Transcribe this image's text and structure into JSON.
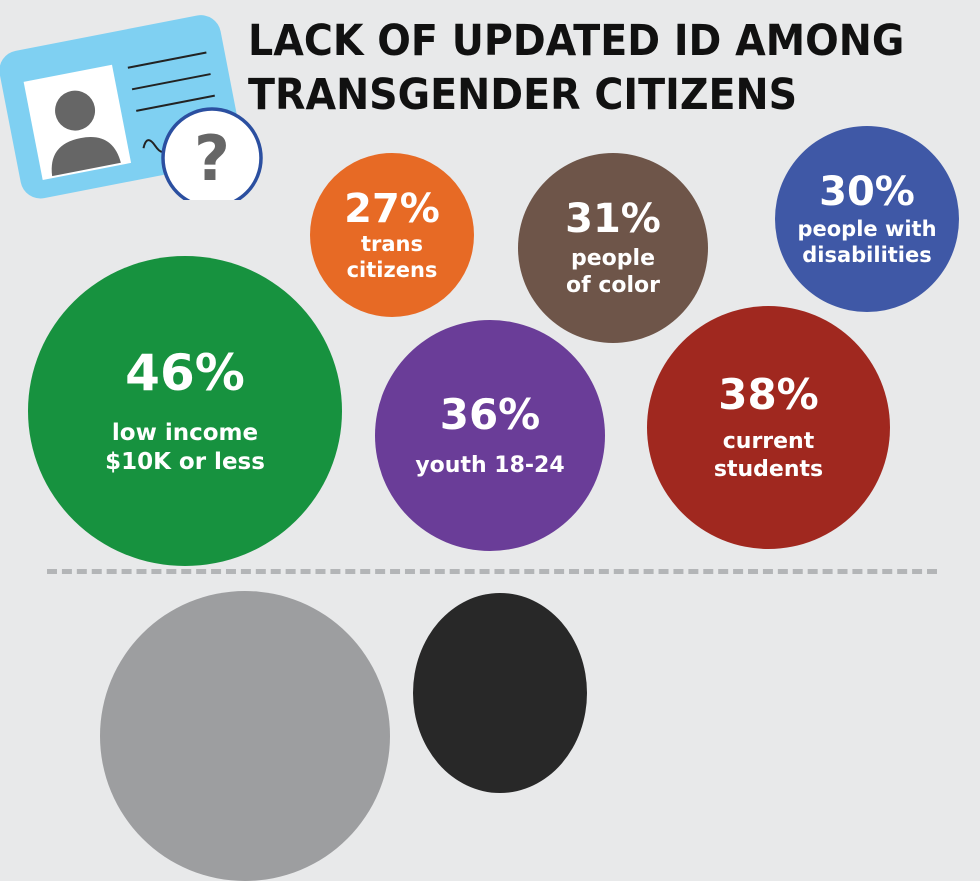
{
  "title": {
    "line1": "LACK OF UPDATED ID AMONG",
    "line2": "TRANSGENDER CITIZENS"
  },
  "icons": {
    "id_card": "id-card-icon",
    "question": "question-mark-icon"
  },
  "bubbles": [
    {
      "key": "low-income",
      "percent": "46%",
      "value": 46,
      "line1": "low income",
      "line2": "$10K or less",
      "color": "#17923f"
    },
    {
      "key": "trans-citizens",
      "percent": "27%",
      "value": 27,
      "line1": "trans",
      "line2": "citizens",
      "color": "#e76a25"
    },
    {
      "key": "people-of-color",
      "percent": "31%",
      "value": 31,
      "line1": "people",
      "line2": "of color",
      "color": "#6e5549"
    },
    {
      "key": "disabilities",
      "percent": "30%",
      "value": 30,
      "line1": "people with",
      "line2": "disabilities",
      "color": "#3f58a6"
    },
    {
      "key": "youth",
      "percent": "36%",
      "value": 36,
      "line1": "youth 18-24",
      "line2": "",
      "color": "#6a3d98"
    },
    {
      "key": "students",
      "percent": "38%",
      "value": 38,
      "line1": "current",
      "line2": "students",
      "color": "#a0281f"
    }
  ],
  "bottom_shapes": {
    "left_color": "#9d9ea0",
    "right_color": "#282828"
  }
}
